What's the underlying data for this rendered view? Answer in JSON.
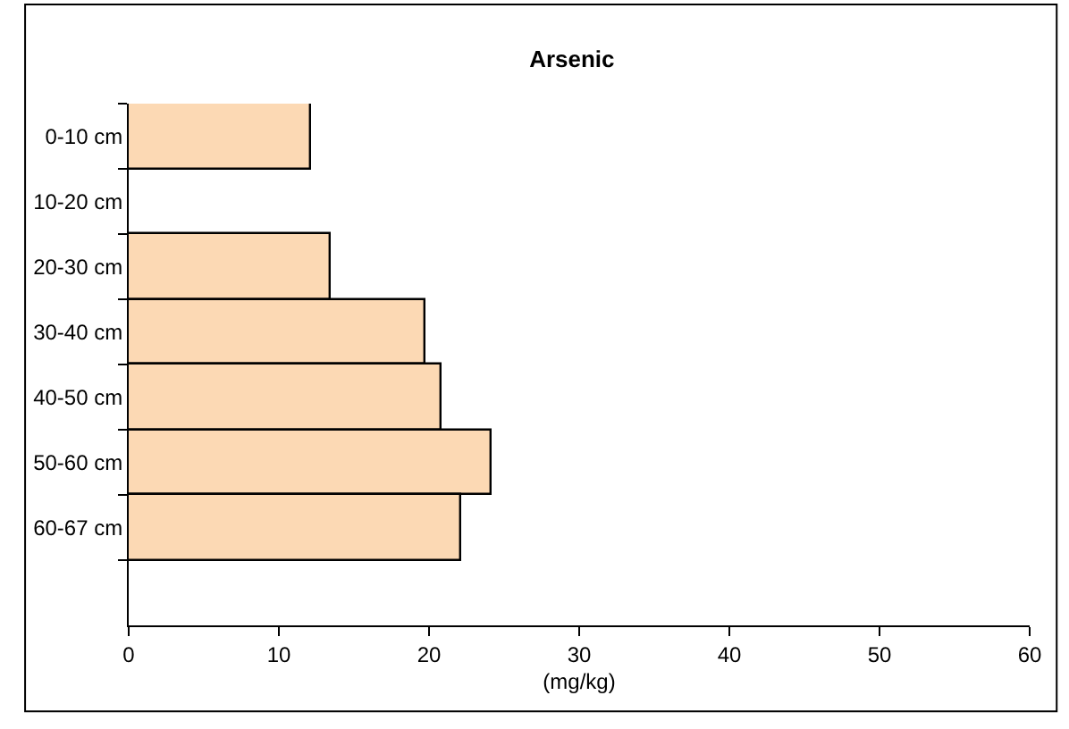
{
  "chart_data": {
    "type": "bar",
    "orientation": "horizontal",
    "title": "Arsenic",
    "xlabel": "(mg/kg)",
    "categories": [
      "0-10 cm",
      "10-20 cm",
      "20-30 cm",
      "30-40 cm",
      "40-50 cm",
      "50-60 cm",
      "60-67 cm",
      null
    ],
    "values": [
      12.2,
      null,
      13.4,
      19.8,
      20.8,
      24.2,
      22.2,
      null
    ],
    "color": "#fcd9b4",
    "xlim": [
      0,
      60
    ],
    "xticks": [
      0,
      10,
      20,
      30,
      40,
      50,
      60
    ]
  }
}
